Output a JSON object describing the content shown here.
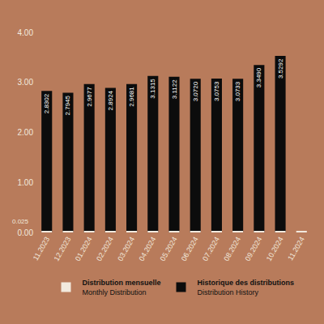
{
  "chart_data": {
    "type": "bar",
    "categories": [
      "11.2023",
      "12.2023",
      "01.2024",
      "02.2024",
      "03.2024",
      "04.2024",
      "05.2024",
      "06.2024",
      "07.2024",
      "08.2024",
      "09.2024",
      "10.2024",
      "11.2024"
    ],
    "series": [
      {
        "name": "Distribution mensuelle\nMonthly Distribution",
        "color": "#f2e9dd",
        "values": [
          0.025,
          0.025,
          0.025,
          0.025,
          0.025,
          0.025,
          0.025,
          0.025,
          0.025,
          0.025,
          0.025,
          0.025,
          0.025
        ]
      },
      {
        "name": "Historique des distributions\nDistribution History",
        "color": "#0c0c0c",
        "values": [
          2.8302,
          2.7945,
          2.9677,
          2.8924,
          2.9681,
          3.1315,
          3.1122,
          3.072,
          3.0753,
          3.0733,
          3.349,
          3.5292,
          null
        ],
        "value_labels": [
          "2.8302",
          "2.7945",
          "2.9677",
          "2.8924",
          "2.9681",
          "3.1315",
          "3.1122",
          "3.0720",
          "3.0753",
          "3.0733",
          "3.3490",
          "3.5292",
          null
        ]
      }
    ],
    "annotations": [
      {
        "text": "0.025",
        "y": 0.025
      }
    ],
    "ylim": [
      0,
      4
    ],
    "yticks": [
      {
        "value": 0,
        "label": "0.00"
      },
      {
        "value": 1,
        "label": "1.00"
      },
      {
        "value": 2,
        "label": "2.00"
      },
      {
        "value": 3,
        "label": "3.00"
      },
      {
        "value": 4,
        "label": "4.00"
      }
    ],
    "grid": false,
    "legend": "bottom",
    "data_labels": true
  }
}
